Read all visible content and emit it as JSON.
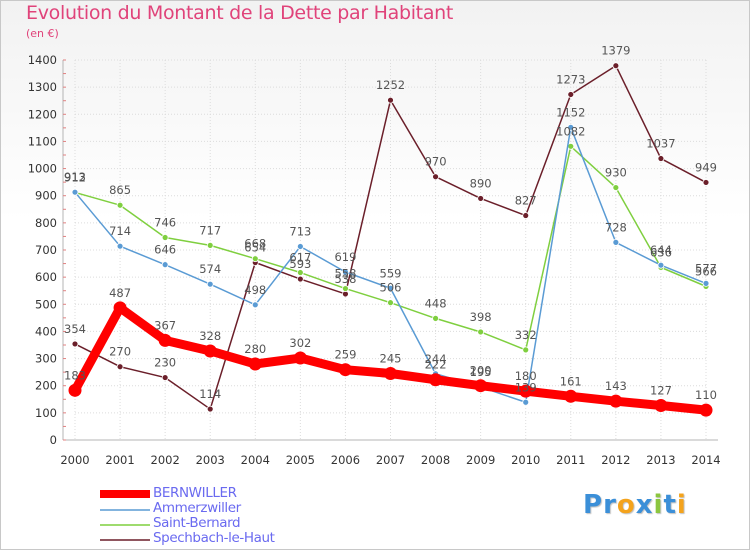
{
  "title": "Evolution du Montant de la Dette par Habitant",
  "unit": "(en €)",
  "logo": {
    "text": "Proxiti",
    "letters": [
      {
        "ch": "P",
        "color": "#3b8fd8"
      },
      {
        "ch": "r",
        "color": "#3b8fd8"
      },
      {
        "ch": "o",
        "color": "#f4a31c"
      },
      {
        "ch": "x",
        "color": "#3b8fd8"
      },
      {
        "ch": "i",
        "color": "#8cc63f"
      },
      {
        "ch": "t",
        "color": "#3b8fd8"
      },
      {
        "ch": "i",
        "color": "#f4a31c"
      }
    ]
  },
  "chart_data": {
    "type": "line",
    "x": [
      "2000",
      "2001",
      "2002",
      "2003",
      "2004",
      "2005",
      "2006",
      "2007",
      "2008",
      "2009",
      "2010",
      "2011",
      "2012",
      "2013",
      "2014"
    ],
    "ylim": [
      0,
      1400
    ],
    "yticks": [
      0,
      100,
      200,
      300,
      400,
      500,
      600,
      700,
      800,
      900,
      1000,
      1100,
      1200,
      1300,
      1400
    ],
    "grid": true,
    "legend_position": "bottom-left",
    "series": [
      {
        "name": "Spechbach-le-Haut",
        "color": "#6b1f2a",
        "values": [
          354,
          270,
          230,
          114,
          654,
          593,
          538,
          1252,
          970,
          890,
          827,
          1273,
          1379,
          1037,
          949
        ],
        "labels": [
          "354",
          "270",
          "230",
          "114",
          "654",
          "593",
          "538",
          "1252",
          "970",
          "890",
          "827",
          "1273",
          "1379",
          "1037",
          "949"
        ]
      },
      {
        "name": "Saint-Bernard",
        "color": "#7fcf3f",
        "values": [
          912,
          865,
          746,
          717,
          668,
          617,
          558,
          506,
          448,
          398,
          332,
          1082,
          930,
          636,
          566
        ],
        "labels": [
          "912",
          "865",
          "746",
          "717",
          "668",
          "617",
          "558",
          "506",
          "448",
          "398",
          "332",
          "1082",
          "930",
          "636",
          "566"
        ]
      },
      {
        "name": "Ammerzwiller",
        "color": "#5a9bd4",
        "values": [
          913,
          714,
          646,
          574,
          498,
          713,
          619,
          559,
          244,
          195,
          139,
          1152,
          728,
          644,
          577
        ],
        "labels": [
          "913",
          "714",
          "646",
          "574",
          "498",
          "713",
          "619",
          "559",
          "244",
          "195",
          "139",
          "1152",
          "728",
          "644",
          "577"
        ]
      },
      {
        "name": "BERNWILLER",
        "color": "#ff0000",
        "values": [
          183,
          487,
          367,
          328,
          280,
          302,
          259,
          245,
          222,
          200,
          180,
          161,
          143,
          127,
          110
        ],
        "labels": [
          "183",
          "487",
          "367",
          "328",
          "280",
          "302",
          "259",
          "245",
          "222",
          "200",
          "180",
          "161",
          "143",
          "127",
          "110"
        ]
      }
    ],
    "legend_order": [
      "BERNWILLER",
      "Ammerzwiller",
      "Saint-Bernard",
      "Spechbach-le-Haut"
    ]
  }
}
